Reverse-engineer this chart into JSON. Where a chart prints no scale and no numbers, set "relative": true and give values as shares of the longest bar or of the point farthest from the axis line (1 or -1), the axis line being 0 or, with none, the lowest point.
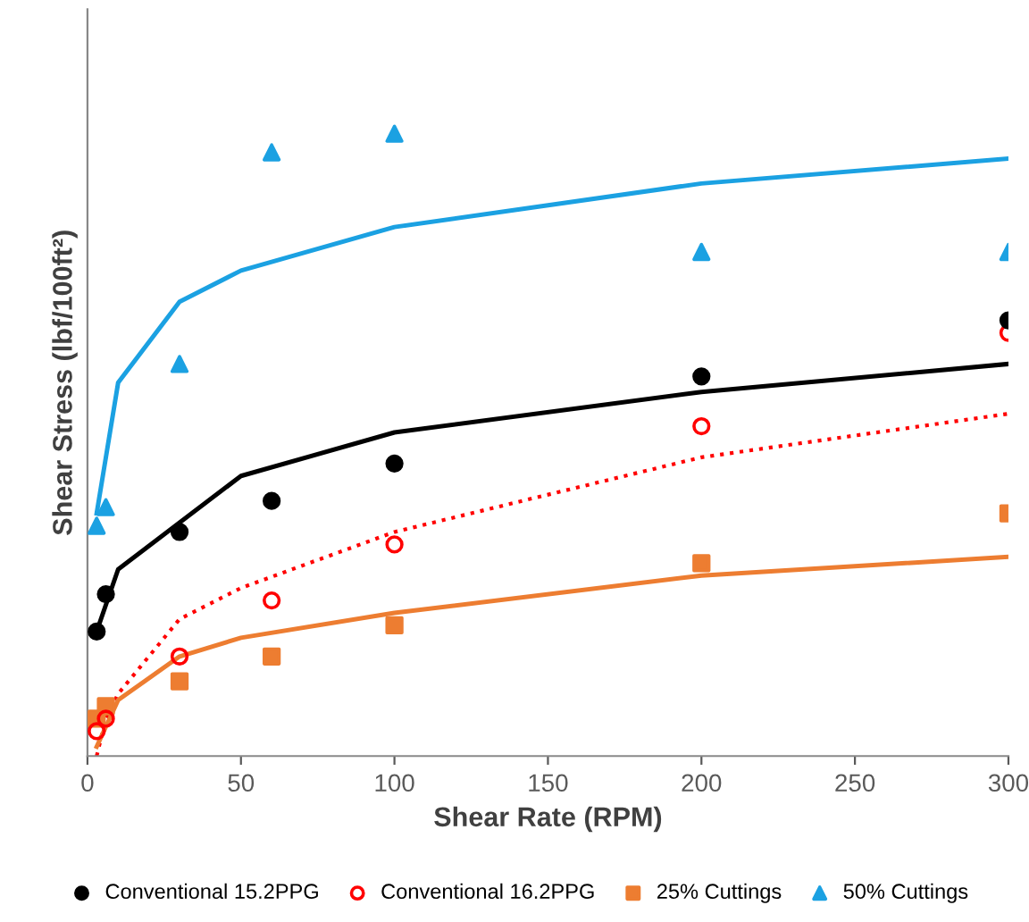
{
  "chart_data": {
    "type": "scatter",
    "xlabel": "Shear Rate (RPM)",
    "ylabel": "Shear Stress (lbf/100ft²)",
    "relative": true,
    "xlim": [
      0,
      300
    ],
    "xticks": [
      0,
      50,
      100,
      150,
      200,
      250,
      300
    ],
    "grid": false,
    "legend": "bottom",
    "x": [
      3,
      6,
      30,
      60,
      100,
      200,
      300
    ],
    "series": [
      {
        "name": "Conventional 15.2PPG",
        "color": "#000000",
        "marker": "circle",
        "values": [
          0.2,
          0.26,
          0.36,
          0.41,
          0.47,
          0.61,
          0.7
        ]
      },
      {
        "name": "Conventional 16.2PPG",
        "color": "#ff0000",
        "marker": "open circle",
        "values": [
          0.04,
          0.06,
          0.16,
          0.25,
          0.34,
          0.53,
          0.68
        ]
      },
      {
        "name": "25% Cuttings",
        "color": "#ed7d31",
        "marker": "square",
        "values": [
          0.06,
          0.08,
          0.12,
          0.16,
          0.21,
          0.31,
          0.39
        ]
      },
      {
        "name": "50% Cuttings",
        "color": "#1ba1e2",
        "marker": "triangle",
        "values": [
          0.37,
          0.4,
          0.63,
          0.97,
          1.0,
          0.81,
          0.81
        ]
      },
      {
        "type": "line",
        "color": "#000000",
        "line_style": "solid",
        "x": [
          3,
          10,
          50,
          100,
          200,
          300
        ],
        "values": [
          0.2,
          0.3,
          0.45,
          0.52,
          0.585,
          0.63
        ]
      },
      {
        "type": "line",
        "color": "#ff0000",
        "line_style": "dotted",
        "x": [
          3,
          6,
          10,
          30,
          50,
          100,
          200,
          300
        ],
        "values": [
          0.0,
          0.06,
          0.1,
          0.22,
          0.27,
          0.36,
          0.48,
          0.55
        ]
      },
      {
        "type": "line",
        "color": "#ed7d31",
        "line_style": "solid",
        "x": [
          3,
          10,
          30,
          50,
          100,
          200,
          300
        ],
        "values": [
          0.015,
          0.09,
          0.16,
          0.19,
          0.23,
          0.29,
          0.32
        ]
      },
      {
        "type": "line",
        "color": "#1ba1e2",
        "line_style": "solid",
        "x": [
          3,
          10,
          30,
          50,
          100,
          200,
          300
        ],
        "values": [
          0.39,
          0.6,
          0.73,
          0.78,
          0.85,
          0.92,
          0.96
        ]
      }
    ]
  }
}
